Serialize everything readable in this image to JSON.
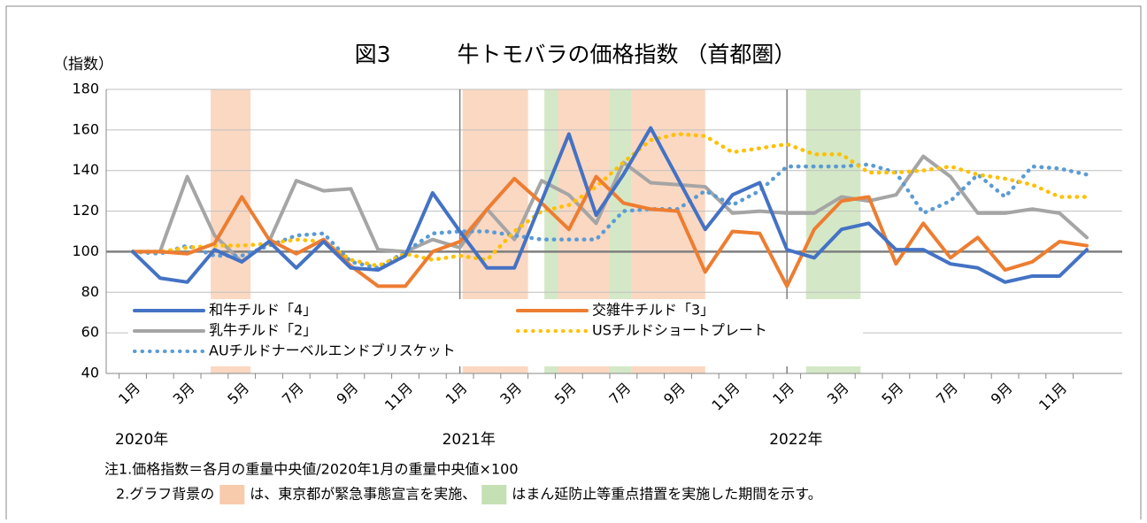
{
  "chart_data": {
    "type": "line",
    "title": "図3　　　牛トモバラの価格指数 （首都圏）",
    "ylabel": "（指数）",
    "categories": [
      "1月",
      null,
      "3月",
      null,
      "5月",
      null,
      "7月",
      null,
      "9月",
      null,
      "11月",
      null,
      "1月",
      null,
      "3月",
      null,
      "5月",
      null,
      "7月",
      null,
      "9月",
      null,
      "11月",
      null,
      "1月",
      null,
      "3月",
      null,
      "5月",
      null,
      "7月",
      null,
      "9月",
      null,
      "11月",
      null
    ],
    "year_labels": [
      {
        "label": "2020年",
        "start": 0
      },
      {
        "label": "2021年",
        "start": 12
      },
      {
        "label": "2022年",
        "start": 24
      }
    ],
    "series": [
      {
        "name": "和牛チルド「4」",
        "color": "#4472c4",
        "style": "solid",
        "values": [
          100,
          87,
          85,
          101,
          95,
          105,
          92,
          105,
          92,
          91,
          98,
          129,
          110,
          92,
          92,
          125,
          158,
          118,
          138,
          161,
          136,
          111,
          128,
          134,
          101,
          97,
          111,
          114,
          101,
          101,
          94,
          92,
          85,
          88,
          88,
          101
        ]
      },
      {
        "name": "交雑牛チルド「3」",
        "color": "#ed7d31",
        "style": "solid",
        "values": [
          100,
          100,
          99,
          104,
          127,
          106,
          99,
          106,
          93,
          83,
          83,
          100,
          105,
          121,
          136,
          124,
          111,
          137,
          124,
          121,
          120,
          90,
          110,
          109,
          83,
          111,
          125,
          127,
          94,
          114,
          97,
          107,
          91,
          95,
          105,
          103
        ]
      },
      {
        "name": "乳牛チルド「2」",
        "color": "#a5a5a5",
        "style": "solid",
        "values": [
          100,
          100,
          137,
          108,
          95,
          105,
          135,
          130,
          131,
          101,
          100,
          106,
          102,
          121,
          106,
          135,
          128,
          114,
          144,
          134,
          133,
          132,
          119,
          120,
          119,
          119,
          127,
          125,
          128,
          147,
          137,
          119,
          119,
          121,
          119,
          107
        ]
      },
      {
        "name": "USチルドショートプレート",
        "color": "#ffc000",
        "style": "dotted",
        "values": [
          100,
          100,
          102,
          103,
          103,
          104,
          106,
          105,
          96,
          93,
          99,
          96,
          98,
          96,
          110,
          120,
          123,
          132,
          144,
          155,
          158,
          157,
          149,
          151,
          153,
          148,
          148,
          139,
          139,
          140,
          142,
          138,
          136,
          133,
          127,
          127
        ]
      },
      {
        "name": "AUチルドナーベルエンドブリスケット",
        "color": "#5b9bd5",
        "style": "dotted",
        "values": [
          100,
          99,
          103,
          98,
          98,
          103,
          108,
          109,
          95,
          92,
          100,
          109,
          110,
          110,
          108,
          106,
          106,
          106,
          120,
          121,
          121,
          130,
          123,
          130,
          142,
          142,
          142,
          143,
          139,
          119,
          125,
          138,
          127,
          142,
          141,
          138
        ]
      }
    ],
    "bands": [
      {
        "from": 2.86,
        "to": 4.32,
        "color": "#f8cbad"
      },
      {
        "from": 12.1,
        "to": 14.5,
        "color": "#f8cbad"
      },
      {
        "from": 15.1,
        "to": 15.6,
        "color": "#c5e0b4"
      },
      {
        "from": 15.6,
        "to": 17.5,
        "color": "#f8cbad"
      },
      {
        "from": 17.5,
        "to": 18.3,
        "color": "#c5e0b4"
      },
      {
        "from": 18.3,
        "to": 21.0,
        "color": "#f8cbad"
      },
      {
        "from": 24.7,
        "to": 26.7,
        "color": "#c5e0b4"
      }
    ],
    "ylim": [
      40,
      180
    ],
    "yticks": [
      40,
      60,
      80,
      100,
      120,
      140,
      160,
      180
    ],
    "grid": true,
    "reference_line": 100,
    "notes": {
      "note1": "注1.価格指数＝各月の重量中央値/2020年1月の重量中央値×100",
      "note2": [
        "2.グラフ背景の",
        "は、東京都が緊急事態宣言を実施、",
        "はまん延防止等重点措置を実施した期間を示す。"
      ],
      "note2_colors": [
        "#f8cbad",
        "#c5e0b4"
      ]
    }
  }
}
